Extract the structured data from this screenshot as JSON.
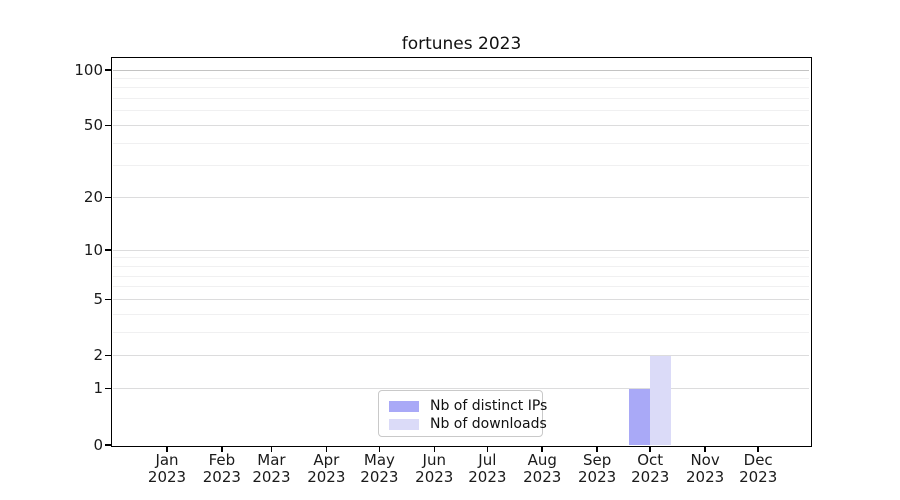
{
  "chart_data": {
    "type": "bar",
    "title": "fortunes 2023",
    "categories": [
      "Jan 2023",
      "Feb 2023",
      "Mar 2023",
      "Apr 2023",
      "May 2023",
      "Jun 2023",
      "Jul 2023",
      "Aug 2023",
      "Sep 2023",
      "Oct 2023",
      "Nov 2023",
      "Dec 2023"
    ],
    "series": [
      {
        "name": "Nb of distinct IPs",
        "color": "#a9a9f7",
        "values": [
          0,
          0,
          0,
          0,
          0,
          0,
          0,
          0,
          0,
          1,
          0,
          0
        ]
      },
      {
        "name": "Nb of downloads",
        "color": "#dbdbf8",
        "values": [
          0,
          0,
          0,
          0,
          0,
          0,
          0,
          0,
          0,
          2,
          0,
          0
        ]
      }
    ],
    "xlabel": "",
    "ylabel": "",
    "y_scale": "log1p",
    "ylim": [
      0,
      116
    ],
    "y_major_ticks": [
      0,
      1,
      2,
      5,
      10,
      20,
      50,
      100
    ],
    "y_minor_gridlines": [
      3,
      4,
      6,
      7,
      8,
      9,
      30,
      40,
      60,
      70,
      80,
      90
    ],
    "grid": "horizontal",
    "grid_colors": {
      "top_line": "#c3c3c3",
      "major": "#dcdcdd",
      "minor": "#f0f0f1"
    },
    "axis_color": "#000000",
    "legend_position": "inside-bottom-center"
  }
}
